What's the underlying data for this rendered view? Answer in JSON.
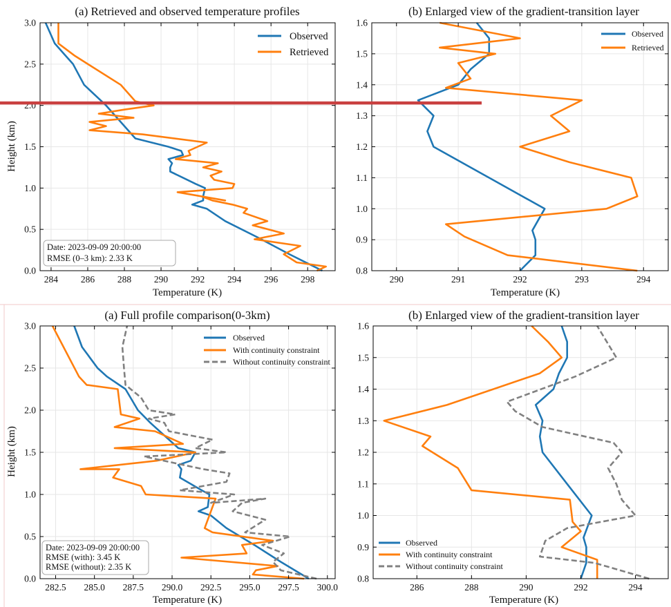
{
  "colors": {
    "observed": "#1f77b4",
    "retrieved": "#ff7f0e",
    "without": "#808080",
    "marker_line": "#c94040",
    "divider": "#f2c8c8",
    "grid": "#e6e6e6"
  },
  "panels": [
    {
      "title": "(a) Retrieved and observed temperature profiles",
      "xlabel": "Temperature (K)",
      "ylabel": "Height (km)",
      "xlim": [
        283.4,
        299.5
      ],
      "ylim": [
        0,
        3.0
      ],
      "xticks": [
        "284",
        "286",
        "288",
        "290",
        "292",
        "294",
        "296",
        "298"
      ],
      "yticks": [
        "0.0",
        "0.5",
        "1.0",
        "1.5",
        "2.0",
        "2.5",
        "3.0"
      ],
      "legend_items": [
        "Observed",
        "Retrieved"
      ],
      "info_lines": [
        "Date: 2023-09-09 20:00:00",
        "RMSE (0–3 km): 2.33 K"
      ]
    },
    {
      "title": "(b) Enlarged view of the gradient-transition layer",
      "xlabel": "Temperature (K)",
      "ylabel": "",
      "xlim": [
        289.6,
        294.4
      ],
      "ylim": [
        0.8,
        1.6
      ],
      "xticks": [
        "290",
        "291",
        "292",
        "293",
        "294"
      ],
      "yticks": [
        "0.8",
        "0.9",
        "1.0",
        "1.1",
        "1.2",
        "1.3",
        "1.4",
        "1.5",
        "1.6"
      ],
      "legend_items": [
        "Observed",
        "Retrieved"
      ],
      "info_lines": []
    },
    {
      "title": "(a) Full profile comparison(0-3km)",
      "xlabel": "Temperature (K)",
      "ylabel": "Height (km)",
      "xlim": [
        281.5,
        300.5
      ],
      "ylim": [
        0,
        3.0
      ],
      "xticks": [
        "282.5",
        "285.0",
        "287.5",
        "290.0",
        "292.5",
        "295.0",
        "297.5",
        "300.0"
      ],
      "yticks": [
        "0.0",
        "0.5",
        "1.0",
        "1.5",
        "2.0",
        "2.5",
        "3.0"
      ],
      "legend_items": [
        "Observed",
        "With continuity constraint",
        "Without continuity constraint"
      ],
      "info_lines": [
        "Date: 2023-09-09 20:00:00",
        "RMSE (with): 3.45 K",
        "RMSE (without): 2.35 K"
      ]
    },
    {
      "title": "(b) Enlarged view of the gradient-transition layer",
      "xlabel": "Temperature (K)",
      "ylabel": "",
      "xlim": [
        284.4,
        295.2
      ],
      "ylim": [
        0.8,
        1.6
      ],
      "xticks": [
        "286",
        "288",
        "290",
        "292",
        "294"
      ],
      "yticks": [
        "0.8",
        "0.9",
        "1.0",
        "1.1",
        "1.2",
        "1.3",
        "1.4",
        "1.5",
        "1.6"
      ],
      "legend_items": [
        "Observed",
        "With continuity constraint",
        "Without continuity constraint"
      ],
      "info_lines": []
    }
  ],
  "chart_data": [
    {
      "type": "line",
      "title": "(a) Retrieved and observed temperature profiles",
      "xlabel": "Temperature (K)",
      "ylabel": "Height (km)",
      "xlim": [
        283.4,
        299.5
      ],
      "ylim": [
        0,
        3.0
      ],
      "grid": true,
      "legend_position": "top-right",
      "series": [
        {
          "name": "Observed",
          "x": [
            298.8,
            297.0,
            295.3,
            293.5,
            292.5,
            291.7,
            292.3,
            292.3,
            292.4,
            291.9,
            290.5,
            290.5,
            290.6,
            290.4,
            291.2,
            291.1,
            290.4,
            289.5,
            288.6,
            287.8,
            287.0,
            285.8,
            285.2,
            284.8,
            284.2,
            283.7
          ],
          "y": [
            0.0,
            0.2,
            0.4,
            0.6,
            0.75,
            0.8,
            0.85,
            0.9,
            1.0,
            1.05,
            1.2,
            1.25,
            1.3,
            1.35,
            1.4,
            1.45,
            1.5,
            1.55,
            1.6,
            1.8,
            2.0,
            2.25,
            2.5,
            2.6,
            2.75,
            3.0
          ]
        },
        {
          "name": "Retrieved",
          "x": [
            298.5,
            299.0,
            297.4,
            296.7,
            297.6,
            295.1,
            296.7,
            295.0,
            295.8,
            294.5,
            294.7,
            293.9,
            292.8,
            292.2,
            293.5,
            290.9,
            293.9,
            294.0,
            292.9,
            292.7,
            293.3,
            292.3,
            293.1,
            290.8,
            291.6,
            291.5,
            292.5,
            289.0,
            286.1,
            287.0,
            286.1,
            288.5,
            286.6,
            288.0,
            289.6,
            288.6,
            287.8,
            285.3,
            284.4,
            284.4
          ],
          "y": [
            0.0,
            0.05,
            0.1,
            0.2,
            0.3,
            0.38,
            0.45,
            0.55,
            0.6,
            0.7,
            0.75,
            0.8,
            0.85,
            0.9,
            0.85,
            0.95,
            1.0,
            1.05,
            1.1,
            1.15,
            1.2,
            1.25,
            1.3,
            1.35,
            1.4,
            1.45,
            1.55,
            1.65,
            1.7,
            1.75,
            1.8,
            1.85,
            1.9,
            1.95,
            2.0,
            2.05,
            2.25,
            2.6,
            2.75,
            3.0
          ]
        }
      ],
      "annotations": [
        "Date: 2023-09-09 20:00:00",
        "RMSE (0–3 km): 2.33 K"
      ]
    },
    {
      "type": "line",
      "title": "(b) Enlarged view of the gradient-transition layer",
      "xlabel": "Temperature (K)",
      "ylabel": "",
      "xlim": [
        289.6,
        294.4
      ],
      "ylim": [
        0.8,
        1.6
      ],
      "grid": true,
      "legend_position": "top-right",
      "series": [
        {
          "name": "Observed",
          "x": [
            292.0,
            292.25,
            292.25,
            292.2,
            292.4,
            291.5,
            290.6,
            290.5,
            290.6,
            290.35,
            291.0,
            291.2,
            291.5,
            291.5,
            291.3
          ],
          "y": [
            0.8,
            0.85,
            0.9,
            0.93,
            1.0,
            1.1,
            1.2,
            1.25,
            1.3,
            1.35,
            1.4,
            1.45,
            1.5,
            1.55,
            1.6
          ]
        },
        {
          "name": "Retrieved",
          "x": [
            293.9,
            291.8,
            291.1,
            290.8,
            293.4,
            293.9,
            293.8,
            292.8,
            292.0,
            292.8,
            292.5,
            293.0,
            290.8,
            291.2,
            291.0,
            291.6,
            290.7,
            292.0,
            290.7
          ],
          "y": [
            0.8,
            0.85,
            0.91,
            0.95,
            1.0,
            1.04,
            1.1,
            1.15,
            1.2,
            1.25,
            1.3,
            1.35,
            1.39,
            1.42,
            1.47,
            1.5,
            1.52,
            1.55,
            1.6
          ]
        }
      ]
    },
    {
      "type": "line",
      "title": "(a) Full profile comparison(0-3km)",
      "xlabel": "Temperature (K)",
      "ylabel": "Height (km)",
      "xlim": [
        281.5,
        300.5
      ],
      "ylim": [
        0,
        3.0
      ],
      "grid": true,
      "legend_position": "top-right",
      "series": [
        {
          "name": "Observed",
          "x": [
            298.8,
            297.0,
            295.3,
            293.5,
            292.5,
            291.7,
            292.3,
            292.4,
            291.9,
            290.5,
            290.6,
            290.4,
            291.2,
            291.5,
            290.4,
            289.5,
            288.6,
            287.8,
            287.0,
            285.8,
            285.2,
            284.8,
            284.2,
            283.7
          ],
          "y": [
            0.0,
            0.2,
            0.4,
            0.6,
            0.75,
            0.8,
            0.85,
            1.0,
            1.05,
            1.2,
            1.3,
            1.35,
            1.4,
            1.5,
            1.55,
            1.7,
            1.85,
            2.0,
            2.25,
            2.4,
            2.5,
            2.6,
            2.75,
            3.0
          ]
        },
        {
          "name": "With continuity constraint",
          "x": [
            298.5,
            295.2,
            295.4,
            296.8,
            290.6,
            294.8,
            294.5,
            296.5,
            292.6,
            292.1,
            292.8,
            288.3,
            288.0,
            286.2,
            286.6,
            284.1,
            289.0,
            291.5,
            286.3,
            290.7,
            288.9,
            286.3,
            287.9,
            286.7,
            286.5,
            284.5,
            284.0,
            282.3
          ],
          "y": [
            0.0,
            0.05,
            0.1,
            0.15,
            0.25,
            0.3,
            0.4,
            0.45,
            0.55,
            0.6,
            0.95,
            1.0,
            1.1,
            1.2,
            1.3,
            1.3,
            1.4,
            1.5,
            1.55,
            1.6,
            1.75,
            1.8,
            1.9,
            1.95,
            2.25,
            2.3,
            2.4,
            3.0
          ]
        },
        {
          "name": "Without continuity constraint",
          "x": [
            299.3,
            297.0,
            296.5,
            297.2,
            295.8,
            297.6,
            294.7,
            296.0,
            293.9,
            294.5,
            296.0,
            292.5,
            294.0,
            290.5,
            293.5,
            293.7,
            292.0,
            288.2,
            293.5,
            291.5,
            292.6,
            289.8,
            289.5,
            288.5,
            290.2,
            288.5,
            288.0,
            287.0,
            286.9,
            286.8,
            287.1
          ],
          "y": [
            0.0,
            0.1,
            0.2,
            0.3,
            0.4,
            0.5,
            0.55,
            0.7,
            0.8,
            0.9,
            0.95,
            0.9,
            1.0,
            1.05,
            1.15,
            1.25,
            1.3,
            1.45,
            1.5,
            1.55,
            1.65,
            1.75,
            1.85,
            1.9,
            1.95,
            2.0,
            2.15,
            2.3,
            2.5,
            2.75,
            3.0
          ]
        }
      ],
      "annotations": [
        "Date: 2023-09-09 20:00:00",
        "RMSE (with): 3.45 K",
        "RMSE (without): 2.35 K"
      ]
    },
    {
      "type": "line",
      "title": "(b) Enlarged view of the gradient-transition layer",
      "xlabel": "Temperature (K)",
      "ylabel": "",
      "xlim": [
        284.4,
        295.2
      ],
      "ylim": [
        0.8,
        1.6
      ],
      "grid": true,
      "legend_position": "bottom-left",
      "series": [
        {
          "name": "Observed",
          "x": [
            292.0,
            292.2,
            292.2,
            292.1,
            292.4,
            291.5,
            290.6,
            290.5,
            290.6,
            290.35,
            291.0,
            291.2,
            291.5,
            291.5,
            291.3
          ],
          "y": [
            0.8,
            0.85,
            0.9,
            0.93,
            1.0,
            1.1,
            1.2,
            1.25,
            1.3,
            1.35,
            1.4,
            1.45,
            1.5,
            1.55,
            1.6
          ]
        },
        {
          "name": "With continuity constraint",
          "x": [
            292.6,
            292.6,
            291.3,
            292.0,
            291.7,
            291.6,
            288.0,
            287.5,
            286.2,
            286.5,
            284.8,
            287.1,
            288.8,
            290.5,
            291.3,
            290.8,
            290.2
          ],
          "y": [
            0.8,
            0.86,
            0.9,
            0.95,
            0.98,
            1.05,
            1.08,
            1.15,
            1.22,
            1.25,
            1.3,
            1.35,
            1.4,
            1.45,
            1.5,
            1.55,
            1.6
          ]
        },
        {
          "name": "Without continuity constraint",
          "x": [
            294.5,
            292.5,
            290.5,
            290.7,
            291.5,
            294.0,
            293.5,
            293.3,
            293.0,
            293.5,
            293.2,
            290.6,
            289.6,
            289.3,
            291.8,
            293.3,
            292.6
          ],
          "y": [
            0.8,
            0.85,
            0.87,
            0.92,
            0.96,
            1.0,
            1.05,
            1.1,
            1.15,
            1.2,
            1.23,
            1.28,
            1.33,
            1.36,
            1.44,
            1.5,
            1.6
          ]
        }
      ]
    }
  ],
  "overlay": {
    "marker_line_height_km": 2.03
  }
}
